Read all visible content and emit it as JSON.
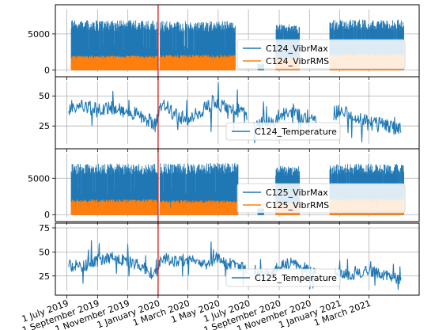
{
  "chart_data": [
    {
      "type": "line",
      "panel": "vibration-c124",
      "ylim": [
        -300,
        8400
      ],
      "yticks": [
        0,
        5000
      ],
      "grid": true,
      "legend_placement": "center-right",
      "series": [
        {
          "name": "C124_VibrMax",
          "color": "#1f77b4",
          "style": "dense-oscillation",
          "segments": [
            {
              "start": "2019-07-10",
              "end": "2019-12-31",
              "level": 6900
            },
            {
              "start": "2020-01-05",
              "end": "2020-06-05",
              "level": 6800
            },
            {
              "start": "2020-07-20",
              "end": "2020-08-01",
              "level": 900
            },
            {
              "start": "2020-08-25",
              "end": "2020-10-12",
              "level": 6400
            },
            {
              "start": "2020-12-12",
              "end": "2021-05-10",
              "level": 7000
            }
          ]
        },
        {
          "name": "C124_VibrRMS",
          "color": "#ff7f0e",
          "style": "dense-oscillation",
          "segments": [
            {
              "start": "2019-07-10",
              "end": "2019-12-31",
              "level": 2000
            },
            {
              "start": "2020-01-05",
              "end": "2020-06-05",
              "level": 2100
            },
            {
              "start": "2020-08-25",
              "end": "2020-10-12",
              "level": 1800
            },
            {
              "start": "2020-12-12",
              "end": "2021-05-10",
              "level": 2300
            }
          ]
        }
      ]
    },
    {
      "type": "line",
      "panel": "temperature-c124",
      "ylim": [
        10,
        62
      ],
      "yticks": [
        25,
        50
      ],
      "grid": true,
      "legend_placement": "lower-right",
      "series": [
        {
          "name": "C124_Temperature",
          "color": "#1f77b4",
          "style": "noisy-line",
          "points": [
            [
              "2019-07-05",
              40
            ],
            [
              "2019-08-01",
              42
            ],
            [
              "2019-09-01",
              38
            ],
            [
              "2019-10-01",
              40
            ],
            [
              "2019-11-01",
              37
            ],
            [
              "2019-12-01",
              33
            ],
            [
              "2019-12-25",
              27
            ],
            [
              "2020-01-10",
              45
            ],
            [
              "2020-02-01",
              35
            ],
            [
              "2020-03-01",
              30
            ],
            [
              "2020-04-01",
              38
            ],
            [
              "2020-04-20",
              45
            ],
            [
              "2020-05-15",
              40
            ],
            [
              "2020-06-15",
              37
            ],
            [
              "2020-07-15",
              26
            ],
            [
              "2020-08-15",
              27
            ],
            [
              "2020-09-01",
              33
            ],
            [
              "2020-10-01",
              38
            ],
            [
              "2020-11-01",
              29
            ],
            [
              "2021-01-01",
              37
            ],
            [
              "2021-02-01",
              33
            ],
            [
              "2021-03-01",
              27
            ],
            [
              "2021-04-01",
              26
            ],
            [
              "2021-05-05",
              22
            ]
          ],
          "gaps": [
            [
              "2020-06-28",
              "2020-07-12"
            ],
            [
              "2020-11-15",
              "2020-12-20"
            ]
          ]
        }
      ]
    },
    {
      "type": "line",
      "panel": "vibration-c125",
      "ylim": [
        -300,
        8400
      ],
      "yticks": [
        0,
        5000
      ],
      "grid": true,
      "legend_placement": "lower-right",
      "series": [
        {
          "name": "C125_VibrMax",
          "color": "#1f77b4",
          "style": "dense-oscillation",
          "segments": [
            {
              "start": "2019-07-10",
              "end": "2019-12-31",
              "level": 7000
            },
            {
              "start": "2020-01-05",
              "end": "2020-06-10",
              "level": 7100
            },
            {
              "start": "2020-07-20",
              "end": "2020-08-01",
              "level": 900
            },
            {
              "start": "2020-08-25",
              "end": "2020-10-12",
              "level": 6700
            },
            {
              "start": "2020-12-12",
              "end": "2021-05-10",
              "level": 7000
            }
          ]
        },
        {
          "name": "C125_VibrRMS",
          "color": "#ff7f0e",
          "style": "dense-oscillation",
          "segments": [
            {
              "start": "2019-07-10",
              "end": "2019-12-31",
              "level": 2100
            },
            {
              "start": "2020-01-05",
              "end": "2020-06-10",
              "level": 2000
            },
            {
              "start": "2020-08-25",
              "end": "2020-10-12",
              "level": 1700
            },
            {
              "start": "2020-12-12",
              "end": "2021-05-10",
              "level": 2200
            }
          ]
        }
      ]
    },
    {
      "type": "line",
      "panel": "temperature-c125",
      "ylim": [
        10,
        75
      ],
      "yticks": [
        25,
        50,
        75
      ],
      "grid": true,
      "legend_placement": "lower-right",
      "series": [
        {
          "name": "C125_Temperature",
          "color": "#1f77b4",
          "style": "noisy-line",
          "points": [
            [
              "2019-07-05",
              36
            ],
            [
              "2019-08-01",
              35
            ],
            [
              "2019-09-01",
              40
            ],
            [
              "2019-10-01",
              44
            ],
            [
              "2019-11-01",
              40
            ],
            [
              "2019-12-01",
              35
            ],
            [
              "2019-12-25",
              25
            ],
            [
              "2020-01-10",
              45
            ],
            [
              "2020-02-01",
              40
            ],
            [
              "2020-03-01",
              43
            ],
            [
              "2020-04-01",
              36
            ],
            [
              "2020-05-01",
              45
            ],
            [
              "2020-05-20",
              38
            ],
            [
              "2020-06-15",
              35
            ],
            [
              "2020-07-15",
              25
            ],
            [
              "2020-08-15",
              27
            ],
            [
              "2020-09-01",
              35
            ],
            [
              "2020-10-01",
              40
            ],
            [
              "2020-11-01",
              30
            ],
            [
              "2021-01-01",
              28
            ],
            [
              "2021-02-01",
              26
            ],
            [
              "2021-03-01",
              30
            ],
            [
              "2021-04-01",
              26
            ],
            [
              "2021-05-05",
              21
            ]
          ],
          "gaps": [
            [
              "2020-06-28",
              "2020-07-12"
            ],
            [
              "2020-11-15",
              "2020-12-20"
            ]
          ]
        }
      ]
    }
  ],
  "shared_x_axis": {
    "type": "date",
    "range": [
      "2019-06-08",
      "2021-06-10"
    ],
    "tick_labels": [
      {
        "date": "2019-07-01",
        "label": "1 July 2019"
      },
      {
        "date": "2019-09-01",
        "label": "1 September 2019"
      },
      {
        "date": "2019-11-01",
        "label": "1 November 2019"
      },
      {
        "date": "2020-01-01",
        "label": "1 January 2020"
      },
      {
        "date": "2020-03-01",
        "label": "1 March 2020"
      },
      {
        "date": "2020-05-01",
        "label": "1 May 2020"
      },
      {
        "date": "2020-07-01",
        "label": "1 July 2020"
      },
      {
        "date": "2020-09-01",
        "label": "1 September 2020"
      },
      {
        "date": "2020-11-01",
        "label": "1 November 2020"
      },
      {
        "date": "2021-01-01",
        "label": "1 January 2021"
      },
      {
        "date": "2021-03-01",
        "label": "1 March 2021"
      }
    ]
  },
  "marker_line": {
    "date": "2020-01-01",
    "color": "#d62728"
  }
}
